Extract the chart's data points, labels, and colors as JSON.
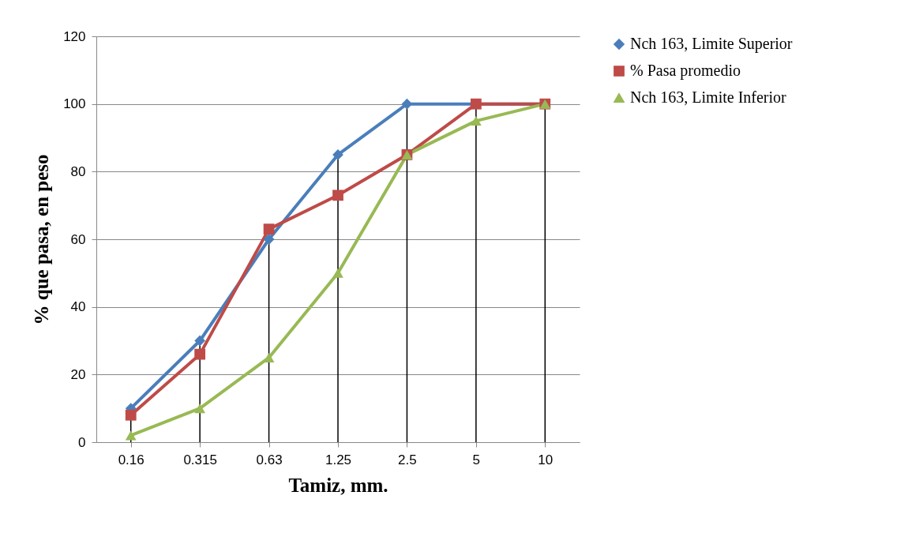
{
  "chart_data": {
    "type": "line",
    "xlabel": "Tamiz, mm.",
    "ylabel": "% que pasa, en peso",
    "categories": [
      "0.16",
      "0.315",
      "0.63",
      "1.25",
      "2.5",
      "5",
      "10"
    ],
    "series": [
      {
        "name": "Nch 163, Limite Superior",
        "color": "#4a7ebb",
        "marker": "diamond",
        "values": [
          10,
          30,
          60,
          85,
          100,
          100,
          100
        ]
      },
      {
        "name": "% Pasa promedio",
        "color": "#be4b48",
        "marker": "square",
        "values": [
          8,
          26,
          63,
          73,
          85,
          100,
          100
        ]
      },
      {
        "name": "Nch 163, Limite Inferior",
        "color": "#98b954",
        "marker": "triangle",
        "values": [
          2,
          10,
          25,
          50,
          85,
          95,
          100
        ]
      }
    ],
    "ylim": [
      0,
      120
    ],
    "yticks": [
      0,
      20,
      40,
      60,
      80,
      100,
      120
    ],
    "grid": "y",
    "legend": "right",
    "ref_lines": [
      {
        "axis": "x",
        "value": "0.16",
        "color": "#000000"
      },
      {
        "axis": "x",
        "value": "0.315",
        "color": "#000000"
      },
      {
        "axis": "x",
        "value": "0.63",
        "color": "#000000"
      },
      {
        "axis": "x",
        "value": "1.25",
        "color": "#000000"
      },
      {
        "axis": "x",
        "value": "2.5",
        "color": "#000000"
      },
      {
        "axis": "x",
        "value": "5",
        "color": "#000000"
      },
      {
        "axis": "x",
        "value": "10",
        "color": "#000000"
      }
    ]
  }
}
